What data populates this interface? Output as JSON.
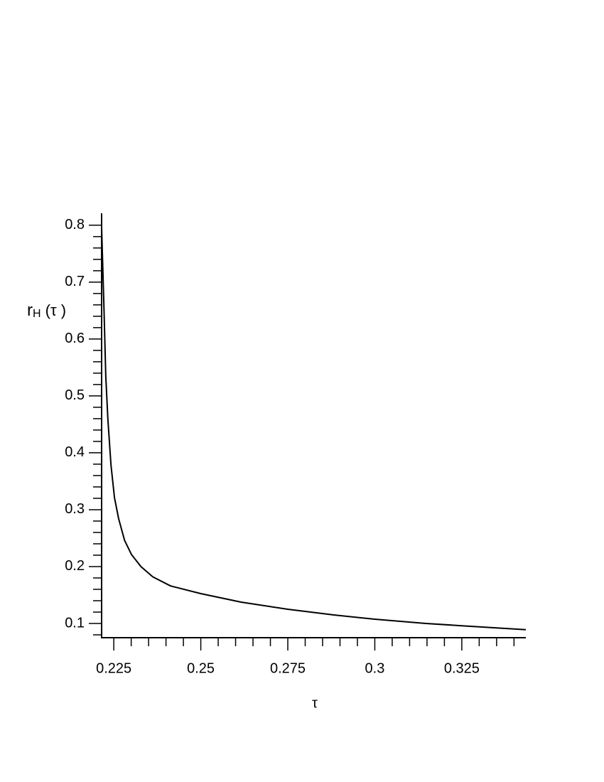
{
  "chart_data": {
    "type": "line",
    "xlabel": "τ",
    "ylabel": {
      "base": "r",
      "sub": "H",
      "rest": " (τ )"
    },
    "xlim": [
      0.2215,
      0.3434
    ],
    "ylim": [
      0.075,
      0.821
    ],
    "xticks": [
      0.225,
      0.25,
      0.275,
      0.3,
      0.325
    ],
    "yticks": [
      0.1,
      0.2,
      0.3,
      0.4,
      0.5,
      0.6,
      0.7,
      0.8
    ],
    "xminorticks": [
      0.23,
      0.235,
      0.24,
      0.245,
      0.255,
      0.26,
      0.265,
      0.27,
      0.28,
      0.285,
      0.29,
      0.295,
      0.305,
      0.31,
      0.315,
      0.32,
      0.33,
      0.335,
      0.34
    ],
    "yminorticks": [
      0.08,
      0.12,
      0.14,
      0.16,
      0.18,
      0.22,
      0.24,
      0.26,
      0.28,
      0.32,
      0.34,
      0.36,
      0.38,
      0.42,
      0.44,
      0.46,
      0.48,
      0.52,
      0.54,
      0.56,
      0.58,
      0.62,
      0.64,
      0.66,
      0.68,
      0.72,
      0.74,
      0.76,
      0.78
    ],
    "grid": false,
    "series": [
      {
        "name": "r_H",
        "color": "#000000",
        "x": [
          0.2215,
          0.2221,
          0.2227,
          0.2233,
          0.2242,
          0.2252,
          0.2264,
          0.2281,
          0.2301,
          0.2328,
          0.2362,
          0.2413,
          0.25,
          0.2616,
          0.275,
          0.2882,
          0.3,
          0.3147,
          0.325,
          0.3434
        ],
        "values": [
          0.796,
          0.671,
          0.534,
          0.459,
          0.378,
          0.321,
          0.284,
          0.246,
          0.221,
          0.2,
          0.182,
          0.166,
          0.1525,
          0.1375,
          0.125,
          0.115,
          0.1075,
          0.1,
          0.096,
          0.089
        ]
      }
    ]
  }
}
